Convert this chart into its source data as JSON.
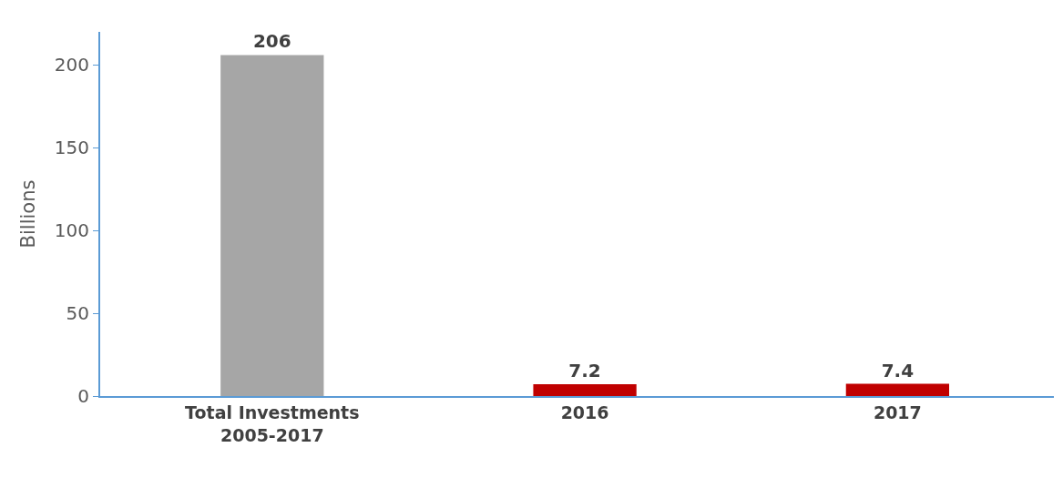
{
  "chart_data": {
    "type": "bar",
    "ylabel": "Billions",
    "categories": [
      "Total Investments 2005-2017",
      "2016",
      "2017"
    ],
    "values": [
      206,
      7.2,
      7.4
    ],
    "colors": [
      "#a6a6a6",
      "#c00000",
      "#c00000"
    ],
    "ylim": [
      0,
      220
    ],
    "yticks": [
      0,
      50,
      100,
      150,
      200
    ],
    "data_labels": true
  }
}
